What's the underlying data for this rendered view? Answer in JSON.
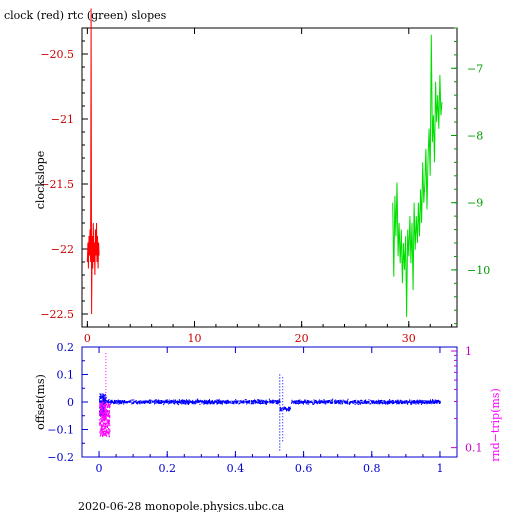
{
  "title": "clock (red) rtc (green) slopes",
  "footer": "2020-06-28  monopole.physics.ubc.ca",
  "colors": {
    "clock": "#ff0000",
    "rtc": "#00dd00",
    "offset": "#0000ff",
    "rnd_trip": "#ff00ff",
    "axes_top_left": "#cc0000",
    "axes_top_right": "#009900",
    "axes_bottom_left": "#0000cc",
    "axes_bottom_right": "#cc00cc",
    "text": "#000000"
  },
  "chart_data": [
    {
      "type": "line",
      "title": "clock (red) rtc (green) slopes",
      "xlabel": "",
      "ylabel": "clockslope",
      "x_ticks": [
        0,
        10,
        20,
        30
      ],
      "xlim": [
        -0.5,
        34.5
      ],
      "ylim_left": [
        -22.6,
        -20.3
      ],
      "y_ticks_left": [
        -22.5,
        -22,
        -21.5,
        -21,
        -20.5
      ],
      "ylim_right": [
        -10.85,
        -6.4
      ],
      "y_ticks_right": [
        -10,
        -9,
        -8,
        -7
      ],
      "grid": false,
      "series": [
        {
          "name": "clock",
          "axis": "left",
          "x": [
            0.0,
            0.05,
            0.1,
            0.15,
            0.2,
            0.25,
            0.3,
            0.35,
            0.4,
            0.45,
            0.5,
            0.55,
            0.6,
            0.65,
            0.7,
            0.75,
            0.8,
            0.85,
            0.9,
            0.95,
            1.0,
            1.05,
            1.1
          ],
          "y": [
            -22.1,
            -21.95,
            -22.15,
            -21.9,
            -22.05,
            -21.85,
            -22.1,
            -20.15,
            -22.5,
            -21.9,
            -22.15,
            -21.8,
            -22.1,
            -21.95,
            -22.2,
            -21.85,
            -22.05,
            -21.8,
            -22.1,
            -21.9,
            -22.15,
            -21.95,
            -22.05
          ]
        },
        {
          "name": "rtc",
          "axis": "right",
          "x": [
            28.5,
            28.6,
            28.7,
            28.8,
            28.9,
            29.0,
            29.1,
            29.2,
            29.3,
            29.4,
            29.5,
            29.6,
            29.7,
            29.8,
            29.9,
            30.0,
            30.1,
            30.2,
            30.3,
            30.4,
            30.5,
            30.6,
            30.7,
            30.8,
            30.9,
            31.0,
            31.1,
            31.2,
            31.3,
            31.4,
            31.5,
            31.6,
            31.7,
            31.8,
            31.9,
            32.0,
            32.1,
            32.2,
            32.3,
            32.4,
            32.5,
            32.6,
            32.7,
            32.8,
            32.9,
            33.0,
            33.1
          ],
          "y": [
            -9.0,
            -10.1,
            -8.9,
            -9.5,
            -8.7,
            -9.8,
            -9.3,
            -9.9,
            -9.4,
            -10.2,
            -9.6,
            -10.0,
            -9.5,
            -10.7,
            -9.4,
            -9.8,
            -9.2,
            -9.9,
            -9.3,
            -10.3,
            -9.0,
            -9.7,
            -9.2,
            -9.6,
            -9.0,
            -9.5,
            -8.8,
            -9.3,
            -8.4,
            -9.0,
            -8.7,
            -8.2,
            -9.1,
            -8.3,
            -7.9,
            -8.6,
            -6.5,
            -8.1,
            -7.7,
            -8.4,
            -7.2,
            -7.8,
            -7.4,
            -7.9,
            -7.1,
            -7.7,
            -7.5
          ]
        }
      ]
    },
    {
      "type": "scatter",
      "xlabel": "",
      "ylabel": "offset(ms)",
      "ylabel_right": "rnd−trip(ms)",
      "x_ticks": [
        0,
        0.2,
        0.4,
        0.6,
        0.8,
        1
      ],
      "xlim": [
        -0.05,
        1.05
      ],
      "ylim_left": [
        -0.2,
        0.2
      ],
      "y_ticks_left": [
        -0.2,
        -0.1,
        0,
        0.1,
        0.2
      ],
      "ylim_right": [
        0.08,
        1.1
      ],
      "y_ticks_right": [
        0.1,
        1
      ],
      "y_scale_right": "log",
      "grid": false,
      "series": [
        {
          "name": "offset",
          "axis": "left",
          "description_values": {
            "baseline_band": [
              -0.02,
              0.02
            ],
            "early_cluster_x": [
              0.0,
              0.02
            ],
            "early_cluster_y": [
              -0.05,
              0.03
            ],
            "spike_x": 0.53,
            "spike_y": [
              -0.18,
              0.1
            ],
            "step_after_spike_y": -0.025
          }
        },
        {
          "name": "rnd-trip",
          "axis": "right",
          "description_values": {
            "cluster_x": [
              0.0,
              0.03
            ],
            "cluster_y": [
              0.13,
              0.3
            ],
            "outlier_x": 0.02,
            "outlier_y": [
              0.3,
              0.95
            ]
          }
        }
      ]
    }
  ]
}
